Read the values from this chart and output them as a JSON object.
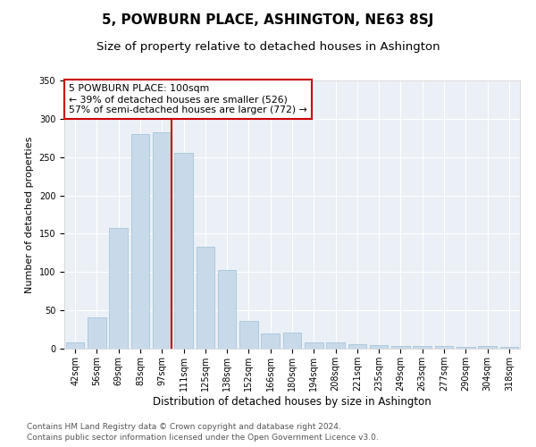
{
  "title": "5, POWBURN PLACE, ASHINGTON, NE63 8SJ",
  "subtitle": "Size of property relative to detached houses in Ashington",
  "xlabel": "Distribution of detached houses by size in Ashington",
  "ylabel": "Number of detached properties",
  "categories": [
    "42sqm",
    "56sqm",
    "69sqm",
    "83sqm",
    "97sqm",
    "111sqm",
    "125sqm",
    "138sqm",
    "152sqm",
    "166sqm",
    "180sqm",
    "194sqm",
    "208sqm",
    "221sqm",
    "235sqm",
    "249sqm",
    "263sqm",
    "277sqm",
    "290sqm",
    "304sqm",
    "318sqm"
  ],
  "values": [
    8,
    41,
    157,
    280,
    282,
    256,
    133,
    103,
    36,
    20,
    21,
    8,
    8,
    6,
    5,
    3,
    3,
    3,
    2,
    3,
    2
  ],
  "bar_color": "#c8daea",
  "bar_edgecolor": "#a8c4d8",
  "highlight_index": 4,
  "highlight_color": "#cc0000",
  "ylim": [
    0,
    350
  ],
  "yticks": [
    0,
    50,
    100,
    150,
    200,
    250,
    300,
    350
  ],
  "annotation_text": "5 POWBURN PLACE: 100sqm\n← 39% of detached houses are smaller (526)\n57% of semi-detached houses are larger (772) →",
  "annotation_box_color": "#ffffff",
  "annotation_box_edgecolor": "#cc0000",
  "footer1": "Contains HM Land Registry data © Crown copyright and database right 2024.",
  "footer2": "Contains public sector information licensed under the Open Government Licence v3.0.",
  "plot_bg_color": "#eaf0f6",
  "title_fontsize": 11,
  "subtitle_fontsize": 9.5,
  "tick_fontsize": 7,
  "ylabel_fontsize": 8,
  "xlabel_fontsize": 8.5,
  "footer_fontsize": 6.5,
  "annotation_fontsize": 7.8
}
